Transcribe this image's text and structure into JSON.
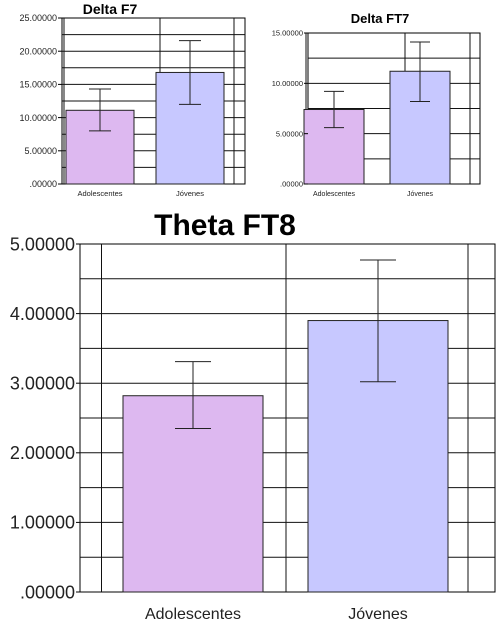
{
  "chart_data": [
    {
      "type": "bar",
      "title": "Delta F7",
      "categories": [
        "Adolescentes",
        "Jóvenes"
      ],
      "values": [
        11.1,
        16.8
      ],
      "error_low": [
        8.0,
        12.0
      ],
      "error_high": [
        14.3,
        21.6
      ],
      "ylim": [
        0,
        25
      ],
      "yticks": [
        0,
        5,
        10,
        15,
        20,
        25
      ],
      "ytick_labels": [
        ".00000",
        "5.00000",
        "10.00000",
        "15.00000",
        "20.00000",
        "25.00000"
      ],
      "grid": true,
      "colors": [
        "#ddb8f0",
        "#c7c8ff"
      ]
    },
    {
      "type": "bar",
      "title": "Delta FT7",
      "categories": [
        "Adolescentes",
        "Jóvenes"
      ],
      "values": [
        7.4,
        11.2
      ],
      "error_low": [
        5.6,
        8.2
      ],
      "error_high": [
        9.2,
        14.1
      ],
      "ylim": [
        0,
        15
      ],
      "yticks": [
        0,
        5,
        10,
        15
      ],
      "ytick_labels": [
        ".00000",
        "5.00000",
        "10.00000",
        "15.00000"
      ],
      "grid": true,
      "colors": [
        "#ddb8f0",
        "#c7c8ff"
      ]
    },
    {
      "type": "bar",
      "title": "Theta FT8",
      "categories": [
        "Adolescentes",
        "Jóvenes"
      ],
      "values": [
        2.82,
        3.9
      ],
      "error_low": [
        2.35,
        3.02
      ],
      "error_high": [
        3.31,
        4.77
      ],
      "ylim": [
        0,
        5
      ],
      "yticks": [
        0,
        1,
        2,
        3,
        4,
        5
      ],
      "ytick_labels": [
        ".00000",
        "1.00000",
        "2.00000",
        "3.00000",
        "4.00000",
        "5.00000"
      ],
      "grid": true,
      "colors": [
        "#ddb8f0",
        "#c7c8ff"
      ]
    }
  ]
}
